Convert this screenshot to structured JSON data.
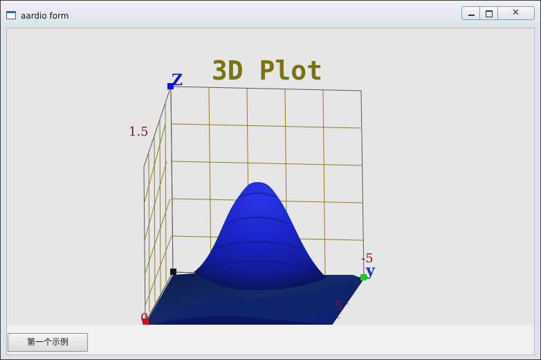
{
  "window": {
    "title": "aardio form"
  },
  "caption_buttons": {
    "minimize": "minimize-icon",
    "maximize": "maximize-icon",
    "close": "close-icon"
  },
  "plot": {
    "title": "3D Plot",
    "axis_labels": {
      "z": "Z",
      "y": "y"
    },
    "tick_labels": {
      "z_top": "1.5",
      "y_neg": "-5",
      "y_pos": "5",
      "x_zero": "0"
    },
    "colors": {
      "title": "#7a7410",
      "grid": "#8b7d1e",
      "tick": "#8b1010",
      "z_axis": "#1010e0",
      "y_axis": "#1030e0",
      "surface_peak": "#1f2ad8",
      "surface_base": "#0c1a5a"
    }
  },
  "chart_data": {
    "type": "surface",
    "title": "3D Plot",
    "zlabel": "Z",
    "ylabel": "y",
    "z_ticks": [
      "1.5"
    ],
    "y_ticks": [
      "-5",
      "5"
    ],
    "x_ticks": [
      "0"
    ],
    "ylim": [
      -5,
      5
    ],
    "function": "gaussian peak",
    "peak_z": 1.5
  },
  "buttons": {
    "demo_label": "第一个示例"
  }
}
